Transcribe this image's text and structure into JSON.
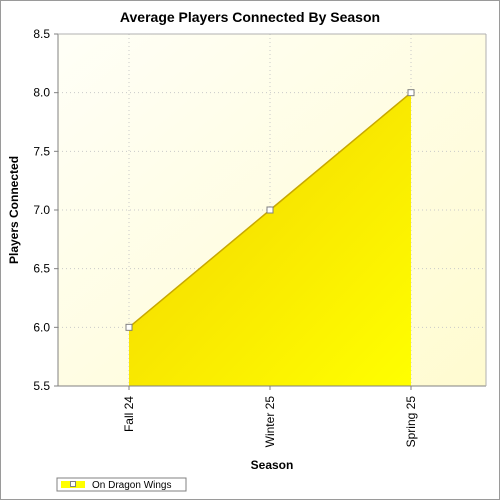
{
  "chart_data": {
    "type": "area",
    "title": "Average Players Connected By Season",
    "xlabel": "Season",
    "ylabel": "Players Connected",
    "categories": [
      "Fall 24",
      "Winter 25",
      "Spring 25"
    ],
    "series": [
      {
        "name": "On Dragon Wings",
        "values": [
          6.0,
          7.0,
          8.0
        ]
      }
    ],
    "ylim": [
      5.5,
      8.5
    ],
    "yticks": [
      5.5,
      6.0,
      6.5,
      7.0,
      7.5,
      8.0,
      8.5
    ],
    "ytick_labels": [
      "5.5",
      "6.0",
      "6.5",
      "7.0",
      "7.5",
      "8.0",
      "8.5"
    ],
    "grid": true,
    "legend_position": "bottom-left",
    "colors": {
      "plot_background_light": "#fffff7",
      "plot_background_dark": "#fffbd0",
      "area_fill_light": "#f2d200",
      "area_fill_dark": "#ffff00",
      "series_line": "#c8a800",
      "grid": "#c9c9c9"
    }
  }
}
